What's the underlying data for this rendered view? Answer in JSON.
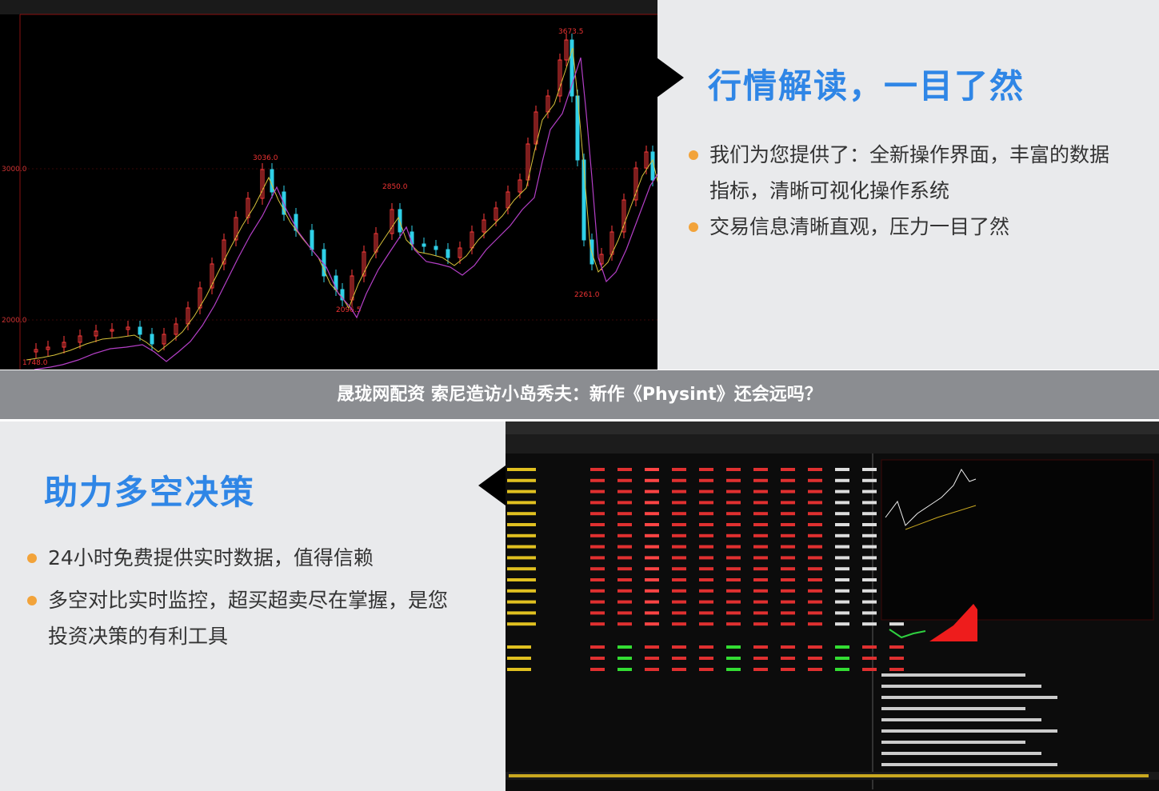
{
  "top_panel": {
    "heading": "行情解读，一目了然",
    "bullets": [
      [
        "我们为您提供了：全新操作界面，丰富的数据",
        "指标，清晰可视化操作系统"
      ],
      [
        "交易信息清晰直观，压力一目了然"
      ]
    ]
  },
  "kline": {
    "axis_labels": [
      "3000.0",
      "2000.0"
    ],
    "price_labels": [
      "3673.5",
      "3036.0",
      "2850.0",
      "2096.5",
      "2261.0",
      "1748.0"
    ]
  },
  "banner": {
    "title": "晟珑网配资 索尼造访小岛秀夫：新作《Physint》还会远吗？"
  },
  "bottom_panel": {
    "heading": "助力多空决策",
    "bullets": [
      [
        "24小时免费提供实时数据，值得信赖"
      ],
      [
        "多空对比实时监控，超买超卖尽在掌握，是您",
        "投资决策的有利工具"
      ]
    ]
  }
}
